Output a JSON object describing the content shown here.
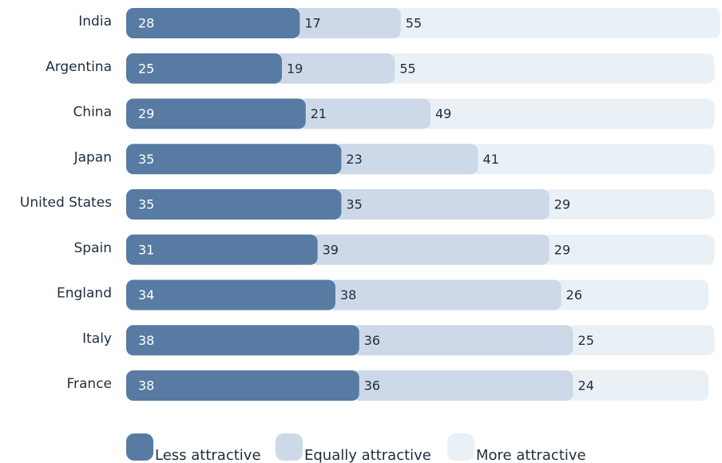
{
  "chart_data": {
    "type": "bar",
    "orientation": "horizontal",
    "stacked": true,
    "categories": [
      "India",
      "Argentina",
      "China",
      "Japan",
      "United States",
      "Spain",
      "England",
      "Italy",
      "France"
    ],
    "series": [
      {
        "name": "Less attractive",
        "values": [
          28,
          25,
          29,
          35,
          35,
          31,
          34,
          38,
          38
        ],
        "color": "#577ba2",
        "label_color": "#ffffff"
      },
      {
        "name": "Equally attractive",
        "values": [
          17,
          19,
          21,
          23,
          35,
          39,
          38,
          36,
          36
        ],
        "color": "#cdd8e8",
        "label_color": "#1f2d3d"
      },
      {
        "name": "More attractive",
        "values": [
          55,
          55,
          49,
          41,
          29,
          29,
          26,
          25,
          24
        ],
        "color": "#eaf1f6",
        "label_color": "#1f2d3d"
      }
    ],
    "xlim": [
      0,
      100
    ],
    "grid": false,
    "legend_position": "bottom"
  }
}
